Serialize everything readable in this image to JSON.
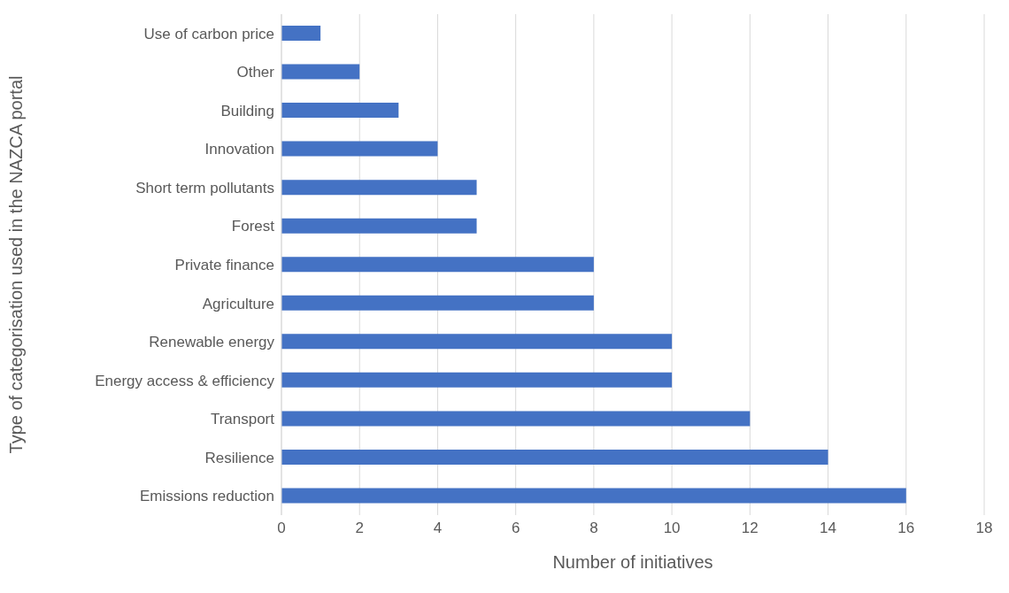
{
  "chart_data": {
    "type": "bar",
    "orientation": "horizontal",
    "categories": [
      "Use of carbon price",
      "Other",
      "Building",
      "Innovation",
      "Short term pollutants",
      "Forest",
      "Private finance",
      "Agriculture",
      "Renewable energy",
      "Energy access & efficiency",
      "Transport",
      "Resilience",
      "Emissions reduction"
    ],
    "values": [
      1,
      2,
      3,
      4,
      5,
      5,
      8,
      8,
      10,
      10,
      12,
      14,
      16
    ],
    "color": "#4472c4",
    "xlim": [
      0,
      18
    ],
    "xticks": [
      0,
      2,
      4,
      6,
      8,
      10,
      12,
      14,
      16,
      18
    ],
    "xlabel": "Number of initiatives",
    "ylabel": "Type of categorisation used in the NAZCA portal",
    "grid": "x"
  }
}
